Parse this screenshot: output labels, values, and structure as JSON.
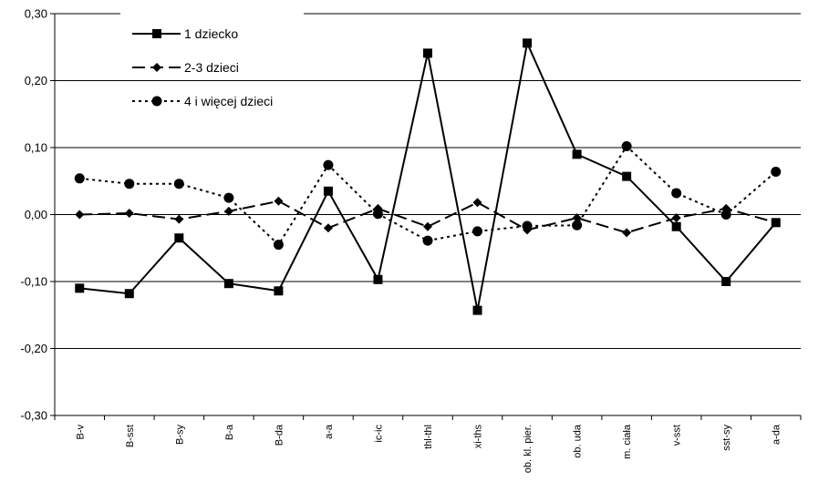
{
  "chart_data": {
    "type": "line",
    "categories": [
      "B-v",
      "B-sst",
      "B-sy",
      "B-a",
      "B-da",
      "a-a",
      "ic-ic",
      "thl-thl",
      "xi-ths",
      "ob. kl. pier.",
      "ob. uda",
      "m. ciała",
      "v-sst",
      "sst-sy",
      "a-da"
    ],
    "y_tick_labels": [
      "0,30",
      "0,20",
      "0,10",
      "0,00",
      "-0,10",
      "-0,20",
      "-0,30"
    ],
    "ylim": [
      -0.3,
      0.3
    ],
    "y_ticks": [
      0.3,
      0.2,
      0.1,
      0.0,
      -0.1,
      -0.2,
      -0.3
    ],
    "grid": "horizontal at 0.10 steps",
    "legend_position": "top-left",
    "series": [
      {
        "name": "1 dziecko",
        "marker": "square",
        "dash": "solid",
        "color": "#000000",
        "values": [
          -0.11,
          -0.118,
          -0.035,
          -0.103,
          -0.114,
          0.035,
          -0.097,
          0.241,
          -0.143,
          0.256,
          0.09,
          0.057,
          -0.018,
          -0.1,
          -0.012
        ]
      },
      {
        "name": "2-3 dzieci",
        "marker": "diamond",
        "dash": "long-dash",
        "color": "#000000",
        "values": [
          0.0,
          0.002,
          -0.007,
          0.005,
          0.02,
          -0.02,
          0.009,
          -0.018,
          0.018,
          -0.023,
          -0.005,
          -0.027,
          -0.005,
          0.009,
          -0.012
        ]
      },
      {
        "name": "4 i więcej dzieci",
        "marker": "circle",
        "dash": "dotted",
        "color": "#000000",
        "values": [
          0.054,
          0.046,
          0.046,
          0.025,
          -0.045,
          0.074,
          0.001,
          -0.039,
          -0.025,
          -0.017,
          -0.016,
          0.102,
          0.032,
          0.0,
          0.064
        ]
      }
    ]
  }
}
